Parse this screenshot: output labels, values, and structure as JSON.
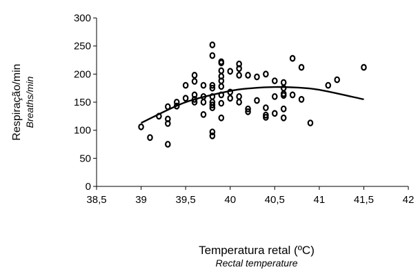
{
  "chart_data": {
    "type": "scatter",
    "ylabel": "Respiração/min",
    "ylabel_secondary": "Breaths/min",
    "xlabel": "Temperatura retal (ºC)",
    "xlabel_secondary": "Rectal temperature",
    "xlim": [
      38.5,
      42
    ],
    "ylim": [
      0,
      300
    ],
    "x_ticks": [
      "38,5",
      "39",
      "39,5",
      "40",
      "40,5",
      "41",
      "41,5",
      "42"
    ],
    "y_ticks": [
      "0",
      "50",
      "100",
      "150",
      "200",
      "250",
      "300"
    ],
    "x_tick_values": [
      38.5,
      39,
      39.5,
      40,
      40.5,
      41,
      41.5,
      42
    ],
    "y_tick_values": [
      0,
      50,
      100,
      150,
      200,
      250,
      300
    ],
    "grid": false,
    "legend": "none",
    "trendline": {
      "type": "polynomial",
      "points": [
        [
          39,
          113
        ],
        [
          39.5,
          150
        ],
        [
          40,
          170
        ],
        [
          40.25,
          175
        ],
        [
          40.5,
          177
        ],
        [
          40.75,
          176
        ],
        [
          41,
          172
        ],
        [
          41.5,
          155
        ]
      ]
    },
    "points": [
      [
        39.0,
        106
      ],
      [
        39.1,
        87
      ],
      [
        39.2,
        125
      ],
      [
        39.3,
        142
      ],
      [
        39.3,
        120
      ],
      [
        39.3,
        112
      ],
      [
        39.3,
        75
      ],
      [
        39.4,
        150
      ],
      [
        39.4,
        143
      ],
      [
        39.5,
        180
      ],
      [
        39.5,
        157
      ],
      [
        39.6,
        198
      ],
      [
        39.6,
        187
      ],
      [
        39.6,
        163
      ],
      [
        39.6,
        155
      ],
      [
        39.6,
        150
      ],
      [
        39.7,
        180
      ],
      [
        39.7,
        160
      ],
      [
        39.7,
        150
      ],
      [
        39.7,
        128
      ],
      [
        39.8,
        252
      ],
      [
        39.8,
        233
      ],
      [
        39.8,
        180
      ],
      [
        39.8,
        175
      ],
      [
        39.8,
        160
      ],
      [
        39.8,
        150
      ],
      [
        39.8,
        145
      ],
      [
        39.8,
        140
      ],
      [
        39.8,
        97
      ],
      [
        39.8,
        90
      ],
      [
        39.9,
        222
      ],
      [
        39.9,
        220
      ],
      [
        39.9,
        206
      ],
      [
        39.9,
        196
      ],
      [
        39.9,
        188
      ],
      [
        39.9,
        178
      ],
      [
        39.9,
        163
      ],
      [
        39.9,
        148
      ],
      [
        39.9,
        122
      ],
      [
        40.0,
        205
      ],
      [
        40.0,
        168
      ],
      [
        40.0,
        157
      ],
      [
        40.1,
        218
      ],
      [
        40.1,
        210
      ],
      [
        40.1,
        198
      ],
      [
        40.1,
        160
      ],
      [
        40.1,
        150
      ],
      [
        40.2,
        198
      ],
      [
        40.2,
        138
      ],
      [
        40.2,
        133
      ],
      [
        40.3,
        195
      ],
      [
        40.3,
        153
      ],
      [
        40.4,
        200
      ],
      [
        40.4,
        140
      ],
      [
        40.4,
        127
      ],
      [
        40.4,
        123
      ],
      [
        40.5,
        188
      ],
      [
        40.5,
        160
      ],
      [
        40.5,
        130
      ],
      [
        40.6,
        185
      ],
      [
        40.6,
        175
      ],
      [
        40.6,
        165
      ],
      [
        40.6,
        162
      ],
      [
        40.6,
        138
      ],
      [
        40.6,
        122
      ],
      [
        40.7,
        228
      ],
      [
        40.7,
        163
      ],
      [
        40.8,
        212
      ],
      [
        40.8,
        155
      ],
      [
        40.9,
        113
      ],
      [
        41.1,
        180
      ],
      [
        41.2,
        190
      ],
      [
        41.5,
        212
      ]
    ]
  }
}
